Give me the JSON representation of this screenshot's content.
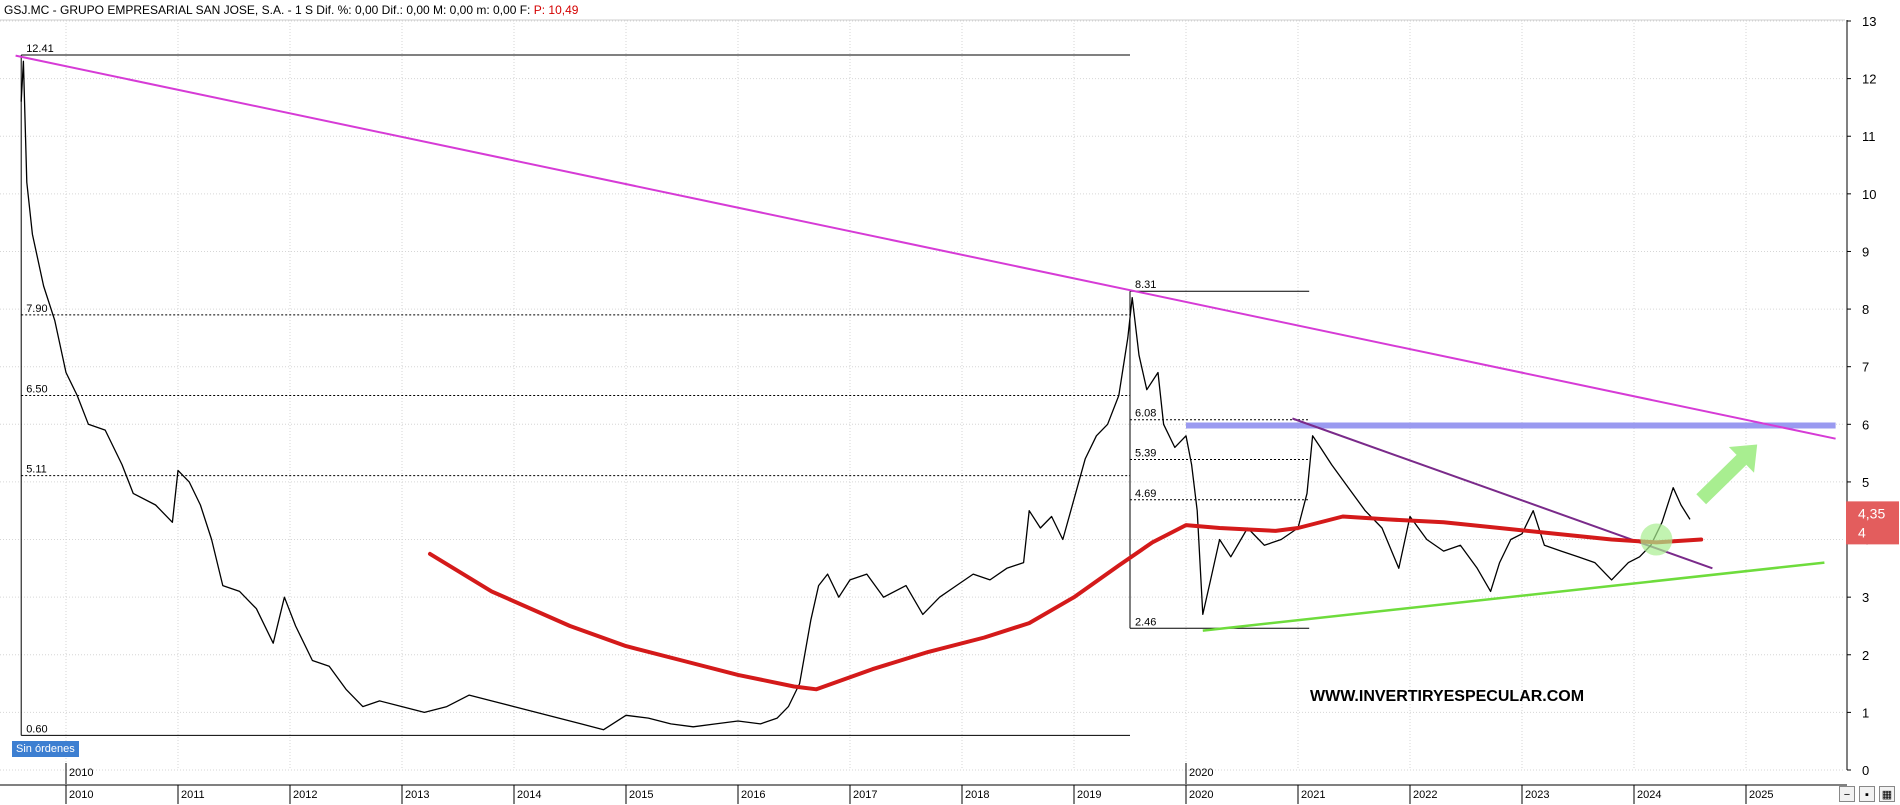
{
  "header": {
    "ticker_line": "GSJ.MC - GRUPO EMPRESARIAL SAN JOSE, S.A. - 1 S Dif. %: 0,00 Dif.: 0,00 M: 0,00 m: 0,00 F:",
    "price_label": "P: 10,49"
  },
  "order_badge": "Sin órdenes",
  "watermark": "WWW.INVERTIRYESPECULAR.COM",
  "price_tag": {
    "main": "4,35",
    "sub": "4"
  },
  "colors": {
    "price": "#000000",
    "long_trendline": "#d63bd6",
    "moving_average": "#d41a1a",
    "support_line": "#6edc3c",
    "resistance_band": "#9a9af0",
    "falling_trendline": "#7a2a8a",
    "arrow": "#a8ee90",
    "price_tag": "#e35d5d"
  },
  "chart_data": {
    "type": "line",
    "title": "",
    "xlabel": "",
    "ylabel": "",
    "xlim": [
      2009.55,
      2025.8
    ],
    "ylim": [
      0,
      13
    ],
    "y_ticks": [
      0,
      1,
      2,
      3,
      4,
      5,
      6,
      7,
      8,
      9,
      10,
      11,
      12,
      13
    ],
    "x_ticks": [
      2010,
      2011,
      2012,
      2013,
      2014,
      2015,
      2016,
      2017,
      2018,
      2019,
      2020,
      2021,
      2022,
      2023,
      2024,
      2025
    ],
    "x_tick_labels": [
      "2010",
      "2011",
      "2012",
      "2013",
      "2014",
      "2015",
      "2016",
      "2017",
      "2018",
      "2019",
      "2020",
      "2021",
      "2022",
      "2023",
      "2024",
      "2025"
    ],
    "lower_labels": [
      {
        "x": 2010,
        "label": "2010"
      },
      {
        "x": 2020,
        "label": "2020"
      }
    ],
    "grid": true,
    "series": [
      {
        "key": "price",
        "points": [
          [
            2009.6,
            11.6
          ],
          [
            2009.62,
            12.3
          ],
          [
            2009.65,
            10.2
          ],
          [
            2009.7,
            9.3
          ],
          [
            2009.8,
            8.4
          ],
          [
            2009.9,
            7.8
          ],
          [
            2010.0,
            6.9
          ],
          [
            2010.1,
            6.5
          ],
          [
            2010.2,
            6.0
          ],
          [
            2010.35,
            5.9
          ],
          [
            2010.5,
            5.3
          ],
          [
            2010.6,
            4.8
          ],
          [
            2010.8,
            4.6
          ],
          [
            2010.95,
            4.3
          ],
          [
            2011.0,
            5.2
          ],
          [
            2011.1,
            5.0
          ],
          [
            2011.2,
            4.6
          ],
          [
            2011.3,
            4.0
          ],
          [
            2011.4,
            3.2
          ],
          [
            2011.55,
            3.1
          ],
          [
            2011.7,
            2.8
          ],
          [
            2011.85,
            2.2
          ],
          [
            2011.95,
            3.0
          ],
          [
            2012.05,
            2.5
          ],
          [
            2012.2,
            1.9
          ],
          [
            2012.35,
            1.8
          ],
          [
            2012.5,
            1.4
          ],
          [
            2012.65,
            1.1
          ],
          [
            2012.8,
            1.2
          ],
          [
            2013.0,
            1.1
          ],
          [
            2013.2,
            1.0
          ],
          [
            2013.4,
            1.1
          ],
          [
            2013.6,
            1.3
          ],
          [
            2013.8,
            1.2
          ],
          [
            2014.0,
            1.1
          ],
          [
            2014.2,
            1.0
          ],
          [
            2014.4,
            0.9
          ],
          [
            2014.6,
            0.8
          ],
          [
            2014.8,
            0.7
          ],
          [
            2015.0,
            0.95
          ],
          [
            2015.2,
            0.9
          ],
          [
            2015.4,
            0.8
          ],
          [
            2015.6,
            0.75
          ],
          [
            2015.8,
            0.8
          ],
          [
            2016.0,
            0.85
          ],
          [
            2016.2,
            0.8
          ],
          [
            2016.35,
            0.9
          ],
          [
            2016.45,
            1.1
          ],
          [
            2016.55,
            1.5
          ],
          [
            2016.65,
            2.6
          ],
          [
            2016.72,
            3.2
          ],
          [
            2016.8,
            3.4
          ],
          [
            2016.9,
            3.0
          ],
          [
            2017.0,
            3.3
          ],
          [
            2017.15,
            3.4
          ],
          [
            2017.3,
            3.0
          ],
          [
            2017.5,
            3.2
          ],
          [
            2017.65,
            2.7
          ],
          [
            2017.8,
            3.0
          ],
          [
            2017.95,
            3.2
          ],
          [
            2018.1,
            3.4
          ],
          [
            2018.25,
            3.3
          ],
          [
            2018.4,
            3.5
          ],
          [
            2018.55,
            3.6
          ],
          [
            2018.6,
            4.5
          ],
          [
            2018.7,
            4.2
          ],
          [
            2018.8,
            4.4
          ],
          [
            2018.9,
            4.0
          ],
          [
            2019.0,
            4.7
          ],
          [
            2019.1,
            5.4
          ],
          [
            2019.2,
            5.8
          ],
          [
            2019.3,
            6.0
          ],
          [
            2019.4,
            6.5
          ],
          [
            2019.48,
            7.5
          ],
          [
            2019.52,
            8.2
          ],
          [
            2019.58,
            7.2
          ],
          [
            2019.65,
            6.6
          ],
          [
            2019.75,
            6.9
          ],
          [
            2019.8,
            6.0
          ],
          [
            2019.9,
            5.6
          ],
          [
            2020.0,
            5.8
          ],
          [
            2020.05,
            5.3
          ],
          [
            2020.1,
            4.5
          ],
          [
            2020.15,
            2.7
          ],
          [
            2020.22,
            3.3
          ],
          [
            2020.3,
            4.0
          ],
          [
            2020.4,
            3.7
          ],
          [
            2020.55,
            4.2
          ],
          [
            2020.7,
            3.9
          ],
          [
            2020.85,
            4.0
          ],
          [
            2021.0,
            4.2
          ],
          [
            2021.08,
            4.8
          ],
          [
            2021.13,
            5.8
          ],
          [
            2021.2,
            5.6
          ],
          [
            2021.3,
            5.3
          ],
          [
            2021.45,
            4.9
          ],
          [
            2021.6,
            4.5
          ],
          [
            2021.75,
            4.2
          ],
          [
            2021.9,
            3.5
          ],
          [
            2022.0,
            4.4
          ],
          [
            2022.15,
            4.0
          ],
          [
            2022.3,
            3.8
          ],
          [
            2022.45,
            3.9
          ],
          [
            2022.6,
            3.5
          ],
          [
            2022.72,
            3.1
          ],
          [
            2022.8,
            3.6
          ],
          [
            2022.9,
            4.0
          ],
          [
            2023.0,
            4.1
          ],
          [
            2023.1,
            4.5
          ],
          [
            2023.2,
            3.9
          ],
          [
            2023.35,
            3.8
          ],
          [
            2023.5,
            3.7
          ],
          [
            2023.65,
            3.6
          ],
          [
            2023.8,
            3.3
          ],
          [
            2023.95,
            3.6
          ],
          [
            2024.05,
            3.7
          ],
          [
            2024.15,
            3.9
          ],
          [
            2024.25,
            4.3
          ],
          [
            2024.35,
            4.9
          ],
          [
            2024.42,
            4.6
          ],
          [
            2024.5,
            4.35
          ]
        ]
      },
      {
        "key": "moving_average",
        "points": [
          [
            2013.25,
            3.75
          ],
          [
            2013.8,
            3.1
          ],
          [
            2014.5,
            2.5
          ],
          [
            2015.0,
            2.15
          ],
          [
            2015.5,
            1.9
          ],
          [
            2016.0,
            1.65
          ],
          [
            2016.5,
            1.45
          ],
          [
            2016.7,
            1.4
          ],
          [
            2017.2,
            1.75
          ],
          [
            2017.7,
            2.05
          ],
          [
            2018.2,
            2.3
          ],
          [
            2018.6,
            2.55
          ],
          [
            2019.0,
            3.0
          ],
          [
            2019.4,
            3.55
          ],
          [
            2019.7,
            3.95
          ],
          [
            2020.0,
            4.25
          ],
          [
            2020.3,
            4.2
          ],
          [
            2020.8,
            4.15
          ],
          [
            2021.0,
            4.2
          ],
          [
            2021.4,
            4.4
          ],
          [
            2021.8,
            4.35
          ],
          [
            2022.3,
            4.3
          ],
          [
            2022.8,
            4.2
          ],
          [
            2023.3,
            4.1
          ],
          [
            2023.8,
            4.0
          ],
          [
            2024.2,
            3.95
          ],
          [
            2024.6,
            4.0
          ]
        ]
      },
      {
        "key": "long_trendline",
        "points": [
          [
            2009.55,
            12.4
          ],
          [
            2025.8,
            5.75
          ]
        ]
      },
      {
        "key": "support_line",
        "points": [
          [
            2020.15,
            2.42
          ],
          [
            2025.7,
            3.6
          ]
        ]
      },
      {
        "key": "falling_trendline",
        "points": [
          [
            2020.95,
            6.1
          ],
          [
            2024.7,
            3.5
          ]
        ]
      },
      {
        "key": "resistance_band",
        "points": [
          [
            2020.0,
            5.98
          ],
          [
            2025.8,
            5.98
          ]
        ]
      }
    ],
    "horizontal_levels": [
      {
        "label": "12.41",
        "value": 12.41,
        "x_start": 2009.6,
        "x_end": 2019.5,
        "style": "solid"
      },
      {
        "label": "0.60",
        "value": 0.6,
        "x_start": 2009.6,
        "x_end": 2019.5,
        "style": "solid"
      },
      {
        "label": "7.90",
        "value": 7.9,
        "x_start": 2009.6,
        "x_end": 2019.5,
        "style": "dotted"
      },
      {
        "label": "6.50",
        "value": 6.5,
        "x_start": 2009.6,
        "x_end": 2019.5,
        "style": "dotted"
      },
      {
        "label": "5.11",
        "value": 5.11,
        "x_start": 2009.6,
        "x_end": 2019.5,
        "style": "dotted"
      },
      {
        "label": "8.31",
        "value": 8.31,
        "x_start": 2019.5,
        "x_end": 2021.1,
        "style": "solid"
      },
      {
        "label": "2.46",
        "value": 2.46,
        "x_start": 2019.5,
        "x_end": 2021.1,
        "style": "solid"
      },
      {
        "label": "6.08",
        "value": 6.08,
        "x_start": 2019.5,
        "x_end": 2021.1,
        "style": "dotted"
      },
      {
        "label": "5.39",
        "value": 5.39,
        "x_start": 2019.5,
        "x_end": 2021.1,
        "style": "dotted"
      },
      {
        "label": "4.69",
        "value": 4.69,
        "x_start": 2019.5,
        "x_end": 2021.1,
        "style": "dotted"
      }
    ],
    "arrow": {
      "from": [
        2024.6,
        4.7
      ],
      "to": [
        2025.1,
        5.65
      ]
    },
    "highlight": {
      "x": 2024.2,
      "y": 4.0
    }
  }
}
